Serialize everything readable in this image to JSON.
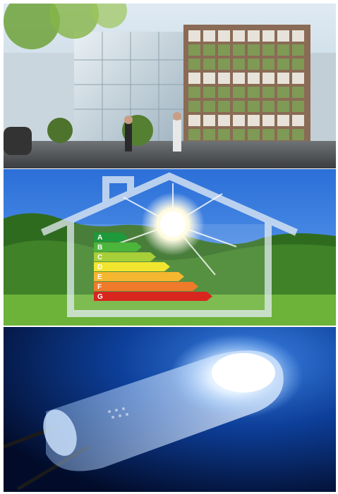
{
  "collage": {
    "panels": [
      {
        "subject": "green-facade-building-street"
      },
      {
        "subject": "house-energy-rating-sun-field"
      },
      {
        "subject": "white-led-diode-closeup"
      }
    ],
    "energy_label": {
      "ratings": [
        "A",
        "B",
        "C",
        "D",
        "E",
        "F",
        "G"
      ],
      "colors": [
        "#1e9a3a",
        "#4cb53b",
        "#a6cf38",
        "#f2e52f",
        "#f5b630",
        "#ee7a2a",
        "#d8261f"
      ]
    }
  }
}
